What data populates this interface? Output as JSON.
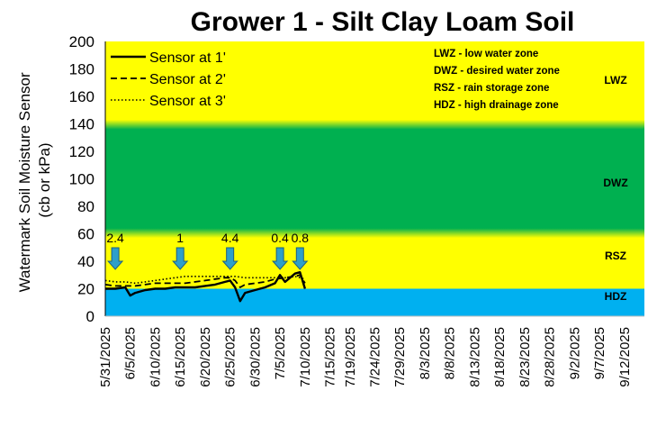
{
  "chart_data": {
    "type": "line",
    "title": "Grower 1 - Silt Clay Loam Soil",
    "ylabel_line1": "Watermark Soil Moisture Sensor",
    "ylabel_line2": "(cb or kPa)",
    "ylim": [
      0,
      200
    ],
    "yticks": [
      "0",
      "20",
      "40",
      "60",
      "80",
      "100",
      "120",
      "140",
      "160",
      "180",
      "200"
    ],
    "xlim": [
      "2025-05-31",
      "2025-09-16"
    ],
    "xticks": [
      "5/31/2025",
      "6/5/2025",
      "6/10/2025",
      "6/15/2025",
      "6/20/2025",
      "6/25/2025",
      "6/30/2025",
      "7/5/2025",
      "7/10/2025",
      "7/15/2025",
      "7/19/2025",
      "7/24/2025",
      "7/29/2025",
      "8/3/2025",
      "8/8/2025",
      "8/13/2025",
      "8/18/2025",
      "8/23/2025",
      "8/28/2025",
      "9/2/2025",
      "9/7/2025",
      "9/12/2025"
    ],
    "zones": [
      {
        "code": "HDZ",
        "from": 0,
        "to": 20,
        "color": "#00b0f0"
      },
      {
        "code": "RSZ",
        "from": 20,
        "to": 60,
        "color": "#ffff00"
      },
      {
        "code": "DWZ",
        "from": 60,
        "to": 140,
        "color": "#00b050"
      },
      {
        "code": "LWZ",
        "from": 140,
        "to": 200,
        "color": "#ffff00"
      }
    ],
    "zone_notes": [
      "LWZ  - low water zone",
      "DWZ - desired water zone",
      "RSZ - rain storage zone",
      "HDZ - high drainage zone"
    ],
    "series": [
      {
        "name": "Sensor at 1'",
        "style": "solid",
        "points": [
          [
            "2025-05-31",
            20
          ],
          [
            "2025-06-02",
            20
          ],
          [
            "2025-06-04",
            21
          ],
          [
            "2025-06-05",
            15
          ],
          [
            "2025-06-06",
            17
          ],
          [
            "2025-06-08",
            19
          ],
          [
            "2025-06-10",
            20
          ],
          [
            "2025-06-12",
            20
          ],
          [
            "2025-06-14",
            21
          ],
          [
            "2025-06-16",
            21
          ],
          [
            "2025-06-18",
            21
          ],
          [
            "2025-06-20",
            22
          ],
          [
            "2025-06-22",
            23
          ],
          [
            "2025-06-24",
            25
          ],
          [
            "2025-06-25",
            26
          ],
          [
            "2025-06-26",
            21
          ],
          [
            "2025-06-27",
            11
          ],
          [
            "2025-06-28",
            17
          ],
          [
            "2025-06-30",
            19
          ],
          [
            "2025-07-02",
            21
          ],
          [
            "2025-07-04",
            24
          ],
          [
            "2025-07-05",
            30
          ],
          [
            "2025-07-06",
            25
          ],
          [
            "2025-07-08",
            31
          ],
          [
            "2025-07-09",
            32
          ],
          [
            "2025-07-10",
            20
          ]
        ]
      },
      {
        "name": "Sensor at 2'",
        "style": "dashed",
        "points": [
          [
            "2025-05-31",
            23
          ],
          [
            "2025-06-02",
            22
          ],
          [
            "2025-06-04",
            22
          ],
          [
            "2025-06-06",
            22
          ],
          [
            "2025-06-08",
            23
          ],
          [
            "2025-06-10",
            24
          ],
          [
            "2025-06-12",
            24
          ],
          [
            "2025-06-14",
            24
          ],
          [
            "2025-06-16",
            24
          ],
          [
            "2025-06-18",
            25
          ],
          [
            "2025-06-20",
            26
          ],
          [
            "2025-06-22",
            27
          ],
          [
            "2025-06-24",
            28
          ],
          [
            "2025-06-25",
            28
          ],
          [
            "2025-06-26",
            26
          ],
          [
            "2025-06-27",
            21
          ],
          [
            "2025-06-28",
            23
          ],
          [
            "2025-06-30",
            24
          ],
          [
            "2025-07-02",
            25
          ],
          [
            "2025-07-04",
            27
          ],
          [
            "2025-07-06",
            28
          ],
          [
            "2025-07-08",
            29
          ],
          [
            "2025-07-09",
            30
          ],
          [
            "2025-07-10",
            24
          ]
        ]
      },
      {
        "name": "Sensor at 3'",
        "style": "dotted",
        "points": [
          [
            "2025-05-31",
            26
          ],
          [
            "2025-06-02",
            25
          ],
          [
            "2025-06-04",
            25
          ],
          [
            "2025-06-06",
            24
          ],
          [
            "2025-06-08",
            25
          ],
          [
            "2025-06-10",
            26
          ],
          [
            "2025-06-12",
            27
          ],
          [
            "2025-06-14",
            28
          ],
          [
            "2025-06-16",
            29
          ],
          [
            "2025-06-18",
            29
          ],
          [
            "2025-06-20",
            29
          ],
          [
            "2025-06-22",
            29
          ],
          [
            "2025-06-24",
            29
          ],
          [
            "2025-06-26",
            29
          ],
          [
            "2025-06-28",
            28
          ],
          [
            "2025-06-30",
            28
          ],
          [
            "2025-07-02",
            28
          ],
          [
            "2025-07-04",
            28
          ],
          [
            "2025-07-06",
            28
          ],
          [
            "2025-07-08",
            29
          ],
          [
            "2025-07-09",
            28
          ],
          [
            "2025-07-10",
            27
          ]
        ]
      }
    ],
    "rain_events": [
      {
        "date": "2025-06-02",
        "label": "2.4"
      },
      {
        "date": "2025-06-15",
        "label": "1"
      },
      {
        "date": "2025-06-25",
        "label": "4.4"
      },
      {
        "date": "2025-07-05",
        "label": "0.4"
      },
      {
        "date": "2025-07-09",
        "label": "0.8"
      }
    ],
    "legend_position": "top-left",
    "grid": false
  }
}
